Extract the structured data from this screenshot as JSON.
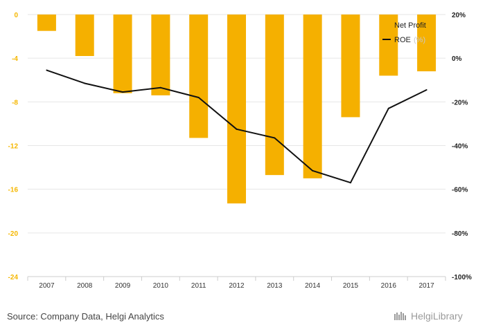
{
  "chart_data": {
    "type": "bar",
    "categories": [
      "2007",
      "2008",
      "2009",
      "2010",
      "2011",
      "2012",
      "2013",
      "2014",
      "2015",
      "2016",
      "2017"
    ],
    "series": [
      {
        "name": "Net Profit",
        "type": "bar",
        "axis": "left",
        "values": [
          -1.5,
          -3.8,
          -7.2,
          -7.4,
          -11.3,
          -17.3,
          -14.7,
          -15.0,
          -9.4,
          -5.6,
          -5.2
        ]
      },
      {
        "name": "ROE",
        "unit": "(%)",
        "type": "line",
        "axis": "right",
        "values": [
          -5.5,
          -11.5,
          -15.5,
          -13.5,
          -18.0,
          -32.5,
          -36.5,
          -51.5,
          -57.0,
          -23.0,
          -14.5
        ]
      }
    ],
    "left_axis": {
      "ticks": [
        "0",
        "-4",
        "-8",
        "-12",
        "-16",
        "-20",
        "-24"
      ],
      "ylim": [
        -24,
        0
      ]
    },
    "right_axis": {
      "ticks": [
        "20%",
        "0%",
        "-20%",
        "-40%",
        "-60%",
        "-80%",
        "-100%"
      ],
      "ylim": [
        -100,
        20
      ]
    },
    "legend_position": "top-right",
    "grid": true,
    "colors": {
      "bar": "#f5b000",
      "line": "#111111",
      "grid": "#e6e6e6"
    }
  },
  "footer": {
    "source": "Source: Company Data, Helgi Analytics",
    "brand": "HelgiLibrary"
  }
}
